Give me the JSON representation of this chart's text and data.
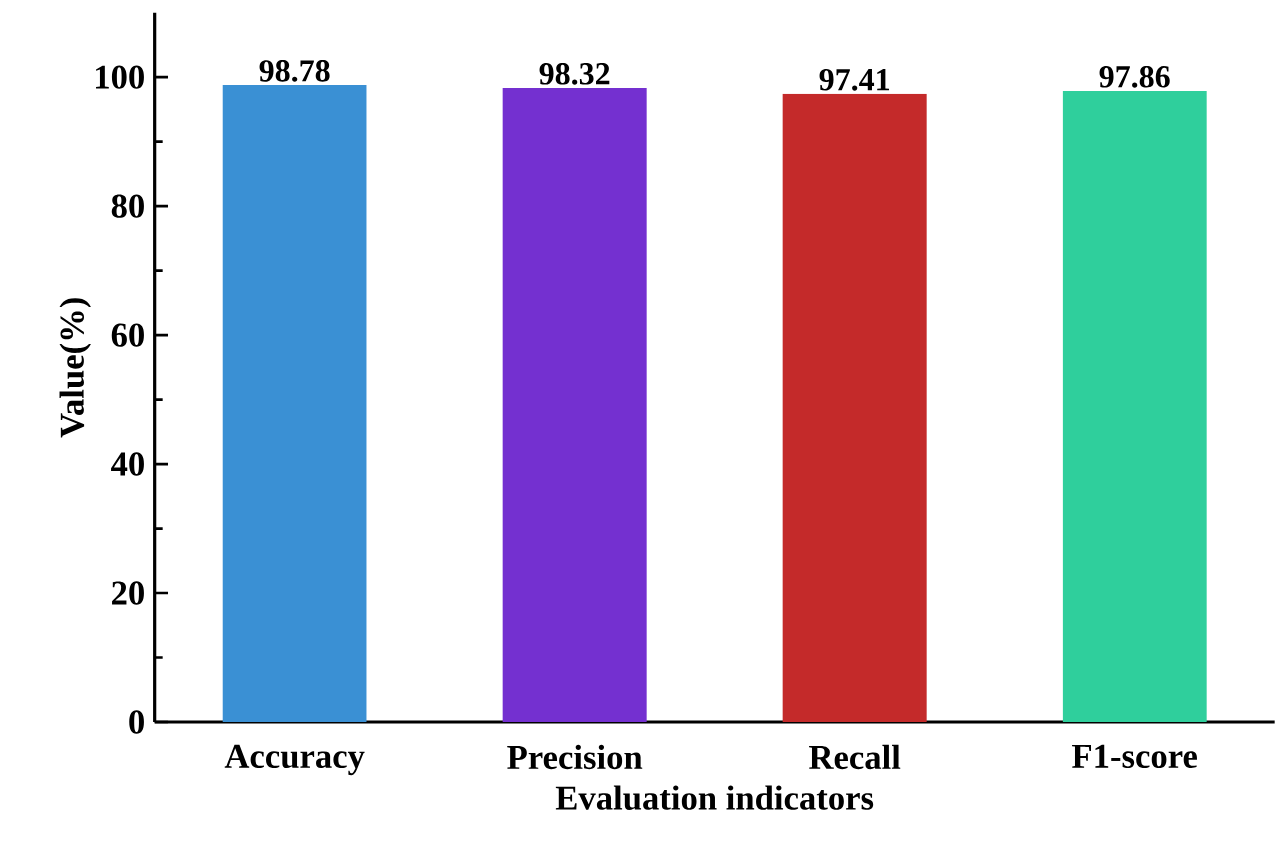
{
  "chart_data": {
    "type": "bar",
    "xlabel": "Evaluation indicators",
    "ylabel": "Value(%)",
    "categories": [
      "Accuracy",
      "Precision",
      "Recall",
      "F1-score"
    ],
    "values": [
      98.78,
      98.32,
      97.41,
      97.86
    ],
    "colors": [
      "#3a90d4",
      "#7430d0",
      "#c42a2a",
      "#2fcf9c"
    ],
    "ylim": [
      0,
      110
    ],
    "yticks": [
      0,
      20,
      40,
      60,
      80,
      100
    ],
    "data_labels": true
  }
}
